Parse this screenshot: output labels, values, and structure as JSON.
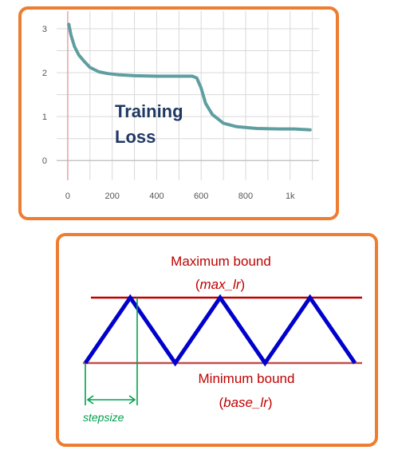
{
  "chart_data": [
    {
      "type": "line",
      "annotation": [
        "Training",
        "Loss"
      ],
      "x_ticks": [
        "0",
        "200",
        "400",
        "600",
        "800",
        "1k"
      ],
      "y_ticks": [
        "0",
        "1",
        "2",
        "3"
      ],
      "xlim": [
        -50,
        1130
      ],
      "ylim": [
        -0.45,
        3.4
      ],
      "grid": true,
      "series": [
        {
          "color": "#5f9ea0",
          "x": [
            5,
            15,
            30,
            50,
            75,
            100,
            140,
            180,
            230,
            300,
            400,
            500,
            560,
            580,
            600,
            620,
            650,
            700,
            760,
            850,
            950,
            1020,
            1090
          ],
          "y": [
            3.1,
            2.85,
            2.6,
            2.4,
            2.25,
            2.12,
            2.02,
            1.98,
            1.95,
            1.93,
            1.92,
            1.92,
            1.92,
            1.88,
            1.65,
            1.3,
            1.05,
            0.85,
            0.77,
            0.73,
            0.72,
            0.72,
            0.7
          ]
        }
      ],
      "colors": {
        "grid": "#d9d9d9",
        "y_axis": "#e8a0a8",
        "line": "#5f9ea0"
      }
    },
    {
      "type": "line",
      "max_label": "Maximum bound",
      "max_sublabel": "max_lr",
      "min_label": "Minimum bound",
      "min_sublabel": "base_lr",
      "step_label": "stepsize",
      "ylim": [
        0,
        1
      ],
      "xlim": [
        0,
        6
      ],
      "series": [
        {
          "color": "#0000cc",
          "x": [
            0,
            1,
            2,
            3,
            4,
            5,
            6
          ],
          "y": [
            0,
            1,
            0,
            1,
            0,
            1,
            0
          ]
        }
      ],
      "colors": {
        "max_line": "#c00000",
        "min_line": "#c0504d",
        "triangle": "#0000cc",
        "step": "#00a14b",
        "text": "#c00000"
      }
    }
  ]
}
